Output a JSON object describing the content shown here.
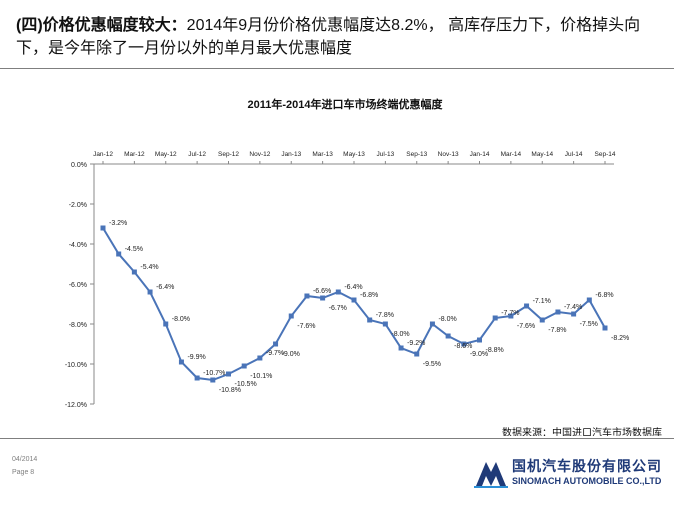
{
  "header": {
    "lead": "(四)价格优惠幅度较大：",
    "text": "2014年9月份价格优惠幅度达8.2%， 高库存压力下，价格掉头向下，是今年除了一月份以外的单月最大优惠幅度"
  },
  "chart_data": {
    "type": "line",
    "title": "2011年-2014年进口车市场终端优惠幅度",
    "xlabel": "",
    "ylabel": "",
    "x_tick_labels": [
      "Jan-12",
      "Mar-12",
      "May-12",
      "Jul-12",
      "Sep-12",
      "Nov-12",
      "Jan-13",
      "Mar-13",
      "May-13",
      "Jul-13",
      "Sep-13",
      "Nov-13",
      "Jan-14",
      "Mar-14",
      "May-14",
      "Jul-14",
      "Sep-14"
    ],
    "y_tick_labels": [
      "0.0%",
      "-2.0%",
      "-4.0%",
      "-6.0%",
      "-8.0%",
      "-10.0%",
      "-12.0%"
    ],
    "ylim": [
      -12,
      0
    ],
    "x_axis_position": "top",
    "grid": false,
    "legend": "none",
    "line_color": "#4a74b8",
    "marker_color": "#4a74b8",
    "series": [
      {
        "values": [
          -3.2,
          -4.5,
          -5.4,
          -6.4,
          -8.0,
          -9.9,
          -10.7,
          -10.8,
          -10.5,
          -10.1,
          -9.7,
          -9.0,
          -7.6,
          -6.6,
          -6.7,
          -6.4,
          -6.8,
          -7.8,
          -8.0,
          -9.2,
          -9.5,
          -8.0,
          -8.6,
          -9.0,
          -8.8,
          -7.7,
          -7.6,
          -7.1,
          -7.8,
          -7.4,
          -7.5,
          -6.8,
          -8.2
        ],
        "labels": [
          "-3.2%",
          "-4.5%",
          "-5.4%",
          "-6.4%",
          "-8.0%",
          "-9.9%",
          "-10.7%",
          "-10.8%",
          "-10.5%",
          "-10.1%",
          "-9.7%",
          "-9.0%",
          "-7.6%",
          "-6.6%",
          "-6.7%",
          "-6.4%",
          "-6.8%",
          "-7.8%",
          "-8.0%",
          "-9.2%",
          "-9.5%",
          "-8.0%",
          "-8.6%",
          "-9.0%",
          "-8.8%",
          "-7.7%",
          "-7.6%",
          "-7.1%",
          "-7.8%",
          "-7.4%",
          "-7.5%",
          "-6.8%",
          "-8.2%"
        ]
      }
    ],
    "source": "数据来源：中国进口汽车市场数据库"
  },
  "footer": {
    "date": "04/2014",
    "page": "Page 8"
  },
  "logo": {
    "cn": "国机汽车股份有限公司",
    "en": "SINOMACH AUTOMOBILE CO.,LTD"
  }
}
